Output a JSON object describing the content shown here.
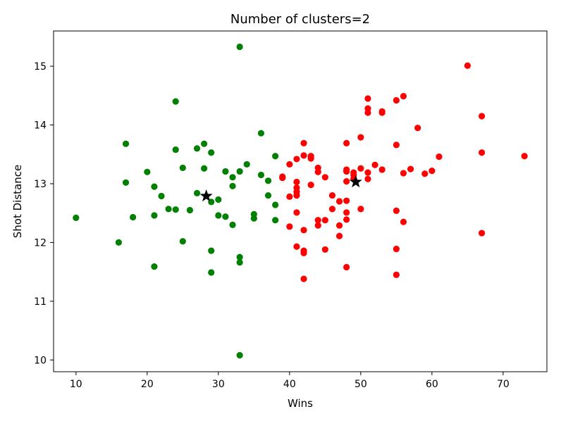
{
  "chart_data": {
    "type": "scatter",
    "title": "Number of clusters=2",
    "xlabel": "Wins",
    "ylabel": "Shot Distance",
    "xlim": [
      6.85,
      76.15
    ],
    "ylim": [
      9.8,
      15.6
    ],
    "xticks": [
      10,
      20,
      30,
      40,
      50,
      60,
      70
    ],
    "yticks": [
      10,
      11,
      12,
      13,
      14,
      15
    ],
    "grid": false,
    "series": [
      {
        "color": "#008000",
        "points": [
          [
            10,
            12.42
          ],
          [
            16,
            12.0
          ],
          [
            17,
            13.68
          ],
          [
            17,
            13.02
          ],
          [
            18,
            12.43
          ],
          [
            20,
            13.2
          ],
          [
            21,
            12.95
          ],
          [
            21,
            12.46
          ],
          [
            21,
            11.59
          ],
          [
            22,
            12.79
          ],
          [
            23,
            12.57
          ],
          [
            24,
            14.4
          ],
          [
            24,
            13.58
          ],
          [
            24,
            12.56
          ],
          [
            25,
            13.27
          ],
          [
            25,
            12.02
          ],
          [
            26,
            12.55
          ],
          [
            27,
            13.6
          ],
          [
            27,
            12.84
          ],
          [
            28,
            13.68
          ],
          [
            28,
            13.26
          ],
          [
            29,
            13.53
          ],
          [
            29,
            12.69
          ],
          [
            29,
            11.86
          ],
          [
            29,
            11.49
          ],
          [
            30,
            12.73
          ],
          [
            30,
            12.46
          ],
          [
            31,
            13.21
          ],
          [
            31,
            12.44
          ],
          [
            32,
            13.11
          ],
          [
            32,
            12.96
          ],
          [
            32,
            12.3
          ],
          [
            33,
            15.33
          ],
          [
            33,
            13.21
          ],
          [
            33,
            11.75
          ],
          [
            33,
            11.66
          ],
          [
            33,
            10.08
          ],
          [
            34,
            13.33
          ],
          [
            35,
            12.48
          ],
          [
            35,
            12.41
          ],
          [
            36,
            13.86
          ],
          [
            36,
            13.15
          ],
          [
            37,
            13.05
          ],
          [
            37,
            12.8
          ],
          [
            38,
            13.47
          ],
          [
            38,
            12.64
          ],
          [
            38,
            12.38
          ]
        ]
      },
      {
        "color": "#ff0000",
        "points": [
          [
            39,
            13.12
          ],
          [
            39,
            13.1
          ],
          [
            40,
            13.33
          ],
          [
            40,
            12.78
          ],
          [
            40,
            12.27
          ],
          [
            41,
            13.42
          ],
          [
            41,
            13.03
          ],
          [
            41,
            12.93
          ],
          [
            41,
            12.86
          ],
          [
            41,
            12.8
          ],
          [
            41,
            12.51
          ],
          [
            41,
            11.93
          ],
          [
            42,
            13.69
          ],
          [
            42,
            13.48
          ],
          [
            42,
            12.21
          ],
          [
            42,
            11.86
          ],
          [
            42,
            11.82
          ],
          [
            42,
            11.38
          ],
          [
            43,
            13.47
          ],
          [
            43,
            13.43
          ],
          [
            43,
            12.98
          ],
          [
            44,
            13.27
          ],
          [
            44,
            13.2
          ],
          [
            44,
            12.38
          ],
          [
            44,
            12.29
          ],
          [
            45,
            13.11
          ],
          [
            45,
            12.38
          ],
          [
            45,
            11.88
          ],
          [
            46,
            12.8
          ],
          [
            46,
            12.57
          ],
          [
            47,
            12.7
          ],
          [
            47,
            12.29
          ],
          [
            47,
            12.11
          ],
          [
            48,
            13.69
          ],
          [
            48,
            13.24
          ],
          [
            48,
            13.21
          ],
          [
            48,
            13.04
          ],
          [
            48,
            12.71
          ],
          [
            48,
            12.51
          ],
          [
            48,
            12.39
          ],
          [
            48,
            11.58
          ],
          [
            49,
            13.19
          ],
          [
            49,
            13.15
          ],
          [
            49,
            13.09
          ],
          [
            50,
            13.79
          ],
          [
            50,
            13.26
          ],
          [
            50,
            12.57
          ],
          [
            51,
            14.45
          ],
          [
            51,
            14.28
          ],
          [
            51,
            14.21
          ],
          [
            51,
            13.19
          ],
          [
            51,
            13.08
          ],
          [
            52,
            13.32
          ],
          [
            53,
            14.23
          ],
          [
            53,
            14.21
          ],
          [
            53,
            13.24
          ],
          [
            55,
            14.42
          ],
          [
            55,
            13.66
          ],
          [
            55,
            12.54
          ],
          [
            55,
            11.89
          ],
          [
            55,
            11.45
          ],
          [
            56,
            14.49
          ],
          [
            56,
            13.18
          ],
          [
            56,
            12.35
          ],
          [
            57,
            13.25
          ],
          [
            58,
            13.95
          ],
          [
            59,
            13.17
          ],
          [
            60,
            13.22
          ],
          [
            61,
            13.46
          ],
          [
            65,
            15.01
          ],
          [
            67,
            14.15
          ],
          [
            67,
            13.53
          ],
          [
            67,
            12.16
          ],
          [
            73,
            13.47
          ]
        ]
      }
    ],
    "centroids": {
      "color": "#000000",
      "marker": "star",
      "points": [
        [
          28.3,
          12.79
        ],
        [
          49.3,
          13.03
        ]
      ]
    }
  }
}
